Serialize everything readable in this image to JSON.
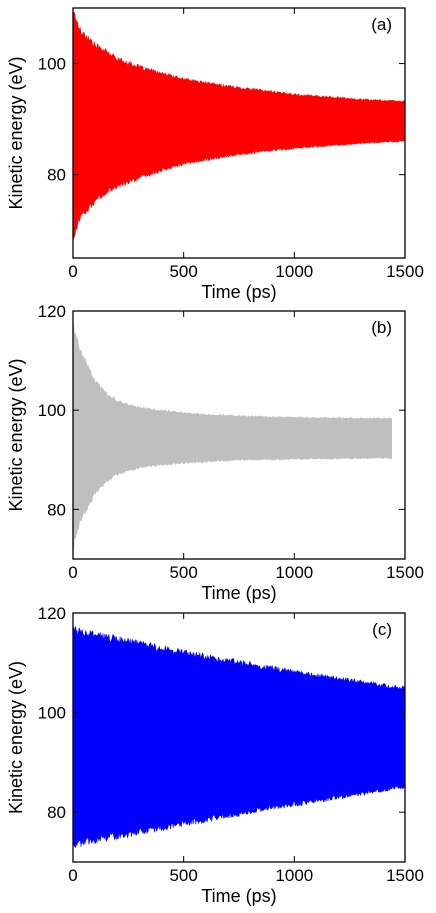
{
  "chart_data": [
    {
      "type": "area",
      "panel_label": "(a)",
      "xlabel": "Time (ps)",
      "ylabel": "Kinetic energy (eV)",
      "xlim": [
        0,
        1500
      ],
      "ylim": [
        65,
        110
      ],
      "xticks": [
        0,
        500,
        1000,
        1500
      ],
      "yticks": [
        80,
        100
      ],
      "color": "#ff0000",
      "grid": false,
      "x_end": 1500,
      "envelope": {
        "time": [
          0,
          25,
          50,
          100,
          150,
          200,
          300,
          400,
          500,
          600,
          700,
          800,
          900,
          1000,
          1100,
          1200,
          1300,
          1400,
          1500
        ],
        "upper": [
          110,
          106.8,
          105.5,
          103.5,
          102.3,
          101,
          99.5,
          98.3,
          97.3,
          96.6,
          96,
          95.5,
          95,
          94.5,
          94.2,
          93.9,
          93.6,
          93.4,
          93.2
        ],
        "lower": [
          68,
          71.5,
          73,
          75,
          76.7,
          77.8,
          79.3,
          80.7,
          81.8,
          82.6,
          83.3,
          83.8,
          84.3,
          84.7,
          85,
          85.3,
          85.6,
          85.8,
          86
        ]
      }
    },
    {
      "type": "area",
      "panel_label": "(b)",
      "xlabel": "Time (ps)",
      "ylabel": "Kinetic energy (eV)",
      "xlim": [
        0,
        1500
      ],
      "ylim": [
        70,
        120
      ],
      "xticks": [
        0,
        500,
        1000,
        1500
      ],
      "yticks": [
        80,
        100,
        120
      ],
      "color": "#bfbfbf",
      "grid": false,
      "x_end": 1440,
      "envelope": {
        "time": [
          0,
          25,
          50,
          100,
          150,
          200,
          250,
          300,
          400,
          500,
          600,
          700,
          800,
          900,
          1000,
          1100,
          1200,
          1300,
          1440
        ],
        "upper": [
          118,
          113,
          110.5,
          106,
          103.5,
          102,
          101.2,
          100.6,
          100,
          99.5,
          99.2,
          99,
          98.8,
          98.7,
          98.6,
          98.5,
          98.5,
          98.4,
          98.4
        ],
        "lower": [
          72,
          76.5,
          79,
          83,
          85.5,
          87,
          87.8,
          88.3,
          88.9,
          89.3,
          89.6,
          89.8,
          90,
          90,
          90.1,
          90.2,
          90.2,
          90.3,
          90.3
        ]
      }
    },
    {
      "type": "area",
      "panel_label": "(c)",
      "xlabel": "Time (ps)",
      "ylabel": "Kinetic energy (eV)",
      "xlim": [
        0,
        1500
      ],
      "ylim": [
        70,
        120
      ],
      "xticks": [
        0,
        500,
        1000,
        1500
      ],
      "yticks": [
        80,
        100,
        120
      ],
      "color": "#0000ff",
      "grid": false,
      "x_end": 1500,
      "envelope": {
        "time": [
          0,
          50,
          100,
          200,
          300,
          400,
          500,
          600,
          700,
          800,
          900,
          1000,
          1100,
          1200,
          1300,
          1400,
          1500
        ],
        "upper": [
          117,
          116.4,
          115.8,
          115,
          114.1,
          113.2,
          112.3,
          111.5,
          110.7,
          109.9,
          109.1,
          108.3,
          107.6,
          107,
          106.3,
          105.6,
          105
        ],
        "lower": [
          73,
          73.7,
          74.2,
          75,
          75.8,
          76.6,
          77.5,
          78.3,
          79.1,
          79.9,
          80.7,
          81.4,
          82.1,
          82.8,
          83.5,
          84.3,
          85
        ]
      }
    }
  ]
}
